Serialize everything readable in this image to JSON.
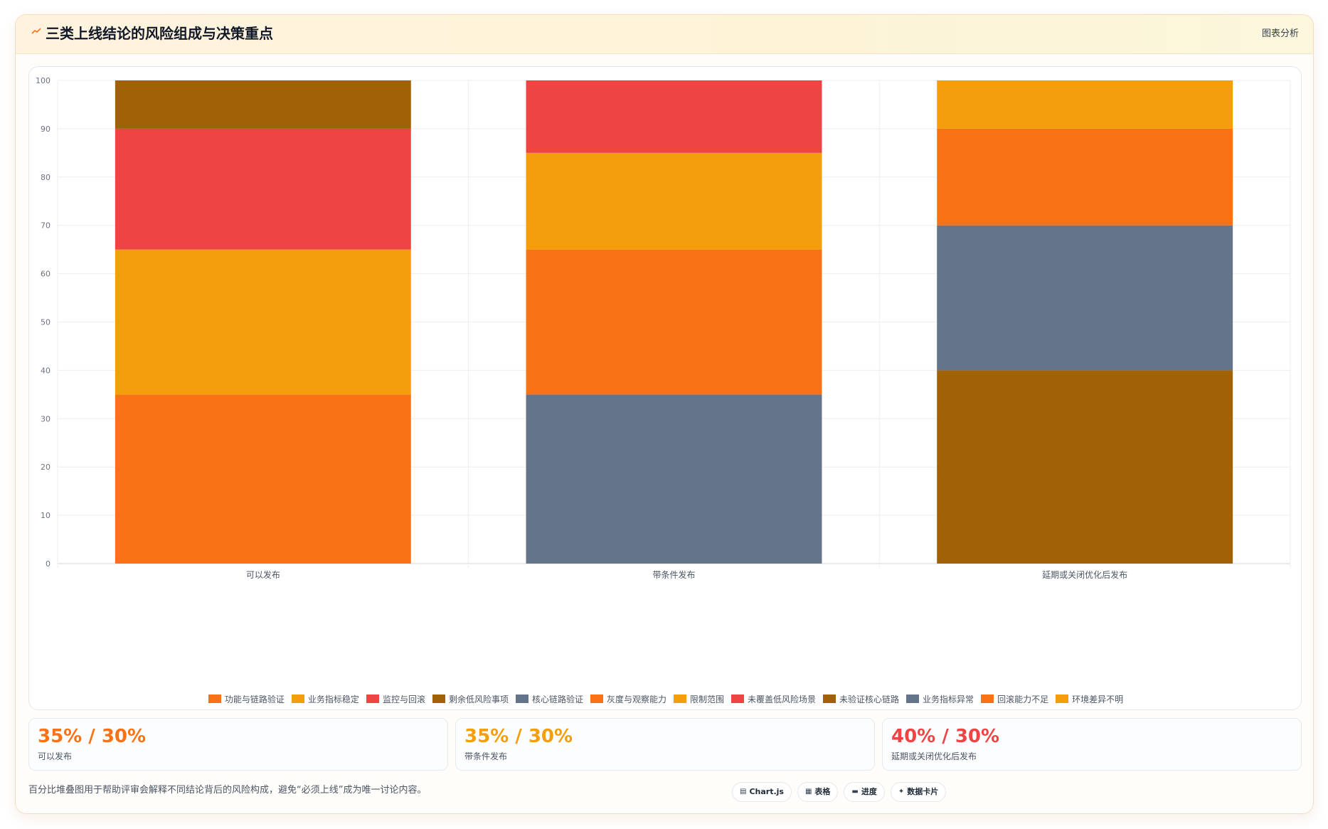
{
  "header": {
    "title": "三类上线结论的风险组成与决策重点",
    "tag": "图表分析",
    "icon": "chart-line-icon"
  },
  "chart_data": {
    "type": "bar",
    "stacked": true,
    "categories": [
      "可以发布",
      "带条件发布",
      "延期或关闭优化后发布"
    ],
    "ylim": [
      0,
      100
    ],
    "yticks": [
      0,
      10,
      20,
      30,
      40,
      50,
      60,
      70,
      80,
      90,
      100
    ],
    "grid": true,
    "legend_position": "bottom",
    "series": [
      {
        "name": "功能与链路验证",
        "color": "#f97316",
        "values": [
          35,
          0,
          0
        ]
      },
      {
        "name": "业务指标稳定",
        "color": "#f59e0b",
        "values": [
          30,
          0,
          0
        ]
      },
      {
        "name": "监控与回滚",
        "color": "#ef4444",
        "values": [
          25,
          0,
          0
        ]
      },
      {
        "name": "剩余低风险事项",
        "color": "#a16207",
        "values": [
          10,
          0,
          0
        ]
      },
      {
        "name": "核心链路验证",
        "color": "#64748b",
        "values": [
          0,
          35,
          0
        ]
      },
      {
        "name": "灰度与观察能力",
        "color": "#f97316",
        "values": [
          0,
          30,
          0
        ]
      },
      {
        "name": "限制范围",
        "color": "#f59e0b",
        "values": [
          0,
          20,
          0
        ]
      },
      {
        "name": "未覆盖低风险场景",
        "color": "#ef4444",
        "values": [
          0,
          15,
          0
        ]
      },
      {
        "name": "未验证核心链路",
        "color": "#a16207",
        "values": [
          0,
          0,
          40
        ]
      },
      {
        "name": "业务指标异常",
        "color": "#64748b",
        "values": [
          0,
          0,
          30
        ]
      },
      {
        "name": "回滚能力不足",
        "color": "#f97316",
        "values": [
          0,
          0,
          20
        ]
      },
      {
        "name": "环境差异不明",
        "color": "#f59e0b",
        "values": [
          0,
          0,
          10
        ]
      }
    ]
  },
  "stats": [
    {
      "value": "35% / 30%",
      "label": "可以发布",
      "color": "#f97316"
    },
    {
      "value": "35% / 30%",
      "label": "带条件发布",
      "color": "#f59e0b"
    },
    {
      "value": "40% / 30%",
      "label": "延期或关闭优化后发布",
      "color": "#ef4444"
    }
  ],
  "footer": {
    "note": "百分比堆叠图用于帮助评审会解释不同结论背后的风险构成，避免“必须上线”成为唯一讨论内容。",
    "chips": [
      {
        "label": "Chart.js",
        "icon": "chart-icon"
      },
      {
        "label": "表格",
        "icon": "table-icon"
      },
      {
        "label": "进度",
        "icon": "progress-icon"
      },
      {
        "label": "数据卡片",
        "icon": "sparkle-icon"
      }
    ]
  }
}
